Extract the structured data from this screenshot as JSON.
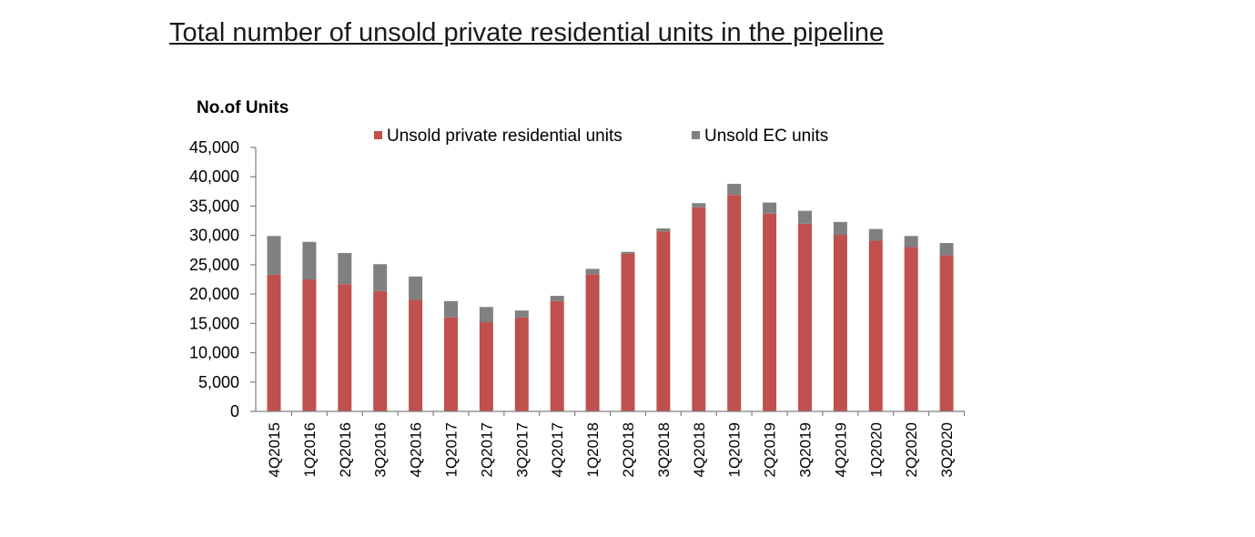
{
  "page": {
    "title": "Total number of unsold private residential units in the pipeline"
  },
  "chart_data": {
    "type": "bar",
    "stacked": true,
    "title": "Total number of unsold private residential units in the pipeline",
    "ylabel": "No.of Units",
    "xlabel": "",
    "ylim": [
      0,
      45000
    ],
    "yticks": [
      0,
      5000,
      10000,
      15000,
      20000,
      25000,
      30000,
      35000,
      40000,
      45000
    ],
    "ytick_labels": [
      "0",
      "5,000",
      "10,000",
      "15,000",
      "20,000",
      "25,000",
      "30,000",
      "35,000",
      "40,000",
      "45,000"
    ],
    "legend_position": "top",
    "grid": false,
    "categories": [
      "4Q2015",
      "1Q2016",
      "2Q2016",
      "3Q2016",
      "4Q2016",
      "1Q2017",
      "2Q2017",
      "3Q2017",
      "4Q2017",
      "1Q2018",
      "2Q2018",
      "3Q2018",
      "4Q2018",
      "1Q2019",
      "2Q2019",
      "3Q2019",
      "4Q2019",
      "1Q2020",
      "2Q2020",
      "3Q2020"
    ],
    "series": [
      {
        "name": "Unsold private residential units",
        "color": "#c0504d",
        "values": [
          23300,
          22500,
          21700,
          20500,
          19000,
          16000,
          15200,
          16000,
          18800,
          23400,
          26900,
          30700,
          34800,
          36900,
          33700,
          32000,
          30100,
          29100,
          28000,
          26600
        ]
      },
      {
        "name": "Unsold EC units",
        "color": "#808080",
        "values": [
          6600,
          6400,
          5300,
          4600,
          4000,
          2800,
          2600,
          1200,
          900,
          900,
          300,
          500,
          700,
          1900,
          1900,
          2200,
          2200,
          2000,
          1900,
          2100
        ]
      }
    ]
  }
}
